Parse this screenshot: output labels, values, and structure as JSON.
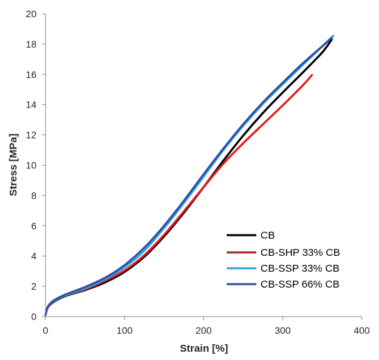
{
  "chart_data": {
    "type": "line",
    "title": "",
    "xlabel": "Strain [%]",
    "ylabel": "Stress [MPa]",
    "xlim": [
      0,
      400
    ],
    "ylim": [
      0,
      20
    ],
    "x_ticks": [
      "0",
      "100",
      "200",
      "300",
      "400"
    ],
    "y_ticks": [
      "0",
      "2",
      "4",
      "6",
      "8",
      "10",
      "12",
      "14",
      "16",
      "18",
      "20"
    ],
    "grid": false,
    "legend_position": "bottom-right",
    "series": [
      {
        "name": "CB",
        "color": "#000000",
        "x": [
          0,
          3,
          10,
          25,
          50,
          75,
          100,
          125,
          150,
          175,
          200,
          225,
          250,
          275,
          300,
          325,
          350,
          362
        ],
        "y": [
          0.1,
          0.6,
          0.95,
          1.35,
          1.75,
          2.25,
          2.95,
          3.95,
          5.3,
          6.85,
          8.55,
          10.3,
          11.95,
          13.45,
          14.8,
          16.1,
          17.45,
          18.3
        ]
      },
      {
        "name": "CB-SHP 33% CB",
        "color": "#e41a1c",
        "legend_color": "#a0301c",
        "x": [
          0,
          3,
          10,
          25,
          50,
          75,
          100,
          125,
          150,
          175,
          200,
          225,
          250,
          275,
          300,
          325,
          337
        ],
        "y": [
          0.1,
          0.6,
          1.0,
          1.4,
          1.8,
          2.35,
          3.05,
          4.05,
          5.4,
          6.95,
          8.55,
          10.1,
          11.45,
          12.7,
          13.95,
          15.25,
          15.95
        ]
      },
      {
        "name": "CB-SSP 33% CB",
        "color": "#2fa4e0",
        "x": [
          0,
          3,
          10,
          25,
          50,
          75,
          100,
          125,
          150,
          175,
          200,
          225,
          250,
          275,
          300,
          325,
          350,
          364
        ],
        "y": [
          0.1,
          0.65,
          1.0,
          1.4,
          1.85,
          2.45,
          3.25,
          4.35,
          5.85,
          7.5,
          9.25,
          11.0,
          12.6,
          14.05,
          15.35,
          16.6,
          17.85,
          18.55
        ]
      },
      {
        "name": "CB-SSP 66% CB",
        "color": "#2e4ea8",
        "x": [
          0,
          3,
          10,
          25,
          50,
          75,
          100,
          125,
          150,
          175,
          200,
          225,
          250,
          275,
          300,
          325,
          350,
          362
        ],
        "y": [
          0.1,
          0.65,
          1.05,
          1.45,
          1.95,
          2.55,
          3.4,
          4.55,
          6.0,
          7.65,
          9.4,
          11.1,
          12.7,
          14.15,
          15.45,
          16.7,
          17.85,
          18.4
        ]
      }
    ]
  }
}
